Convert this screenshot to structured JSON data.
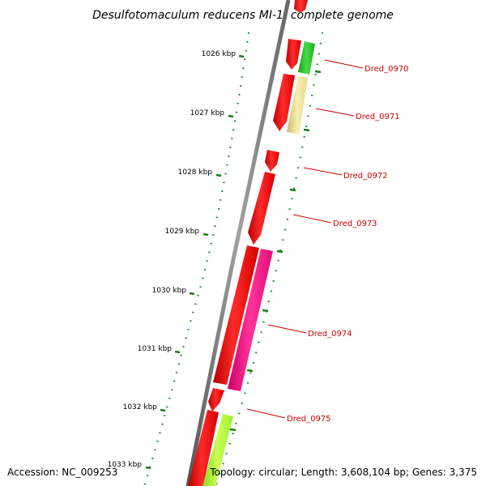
{
  "title": "Desulfotomaculum reducens MI-1, complete genome",
  "accession": "Accession: NC_009253",
  "topology": "Topology: circular; Length: 3,608,104 bp; Genes: 3,375",
  "colors": {
    "backbone": "#808080",
    "tick": "#1a7f1a",
    "gene_label": "#cc0000",
    "cds_red": "#ff0000",
    "cds_green": "#33cc33",
    "cds_pale_yellow": "#f0e6a0",
    "cds_magenta": "#ff1a8c",
    "cds_lime": "#aaff33"
  },
  "kbp_labels": [
    "1026 kbp",
    "1027 kbp",
    "1028 kbp",
    "1029 kbp",
    "1030 kbp",
    "1031 kbp",
    "1032 kbp",
    "1033 kbp"
  ],
  "gene_labels": [
    "Dred_0970",
    "Dred_0971",
    "Dred_0972",
    "Dred_0973",
    "Dred_0974",
    "Dred_0975"
  ]
}
